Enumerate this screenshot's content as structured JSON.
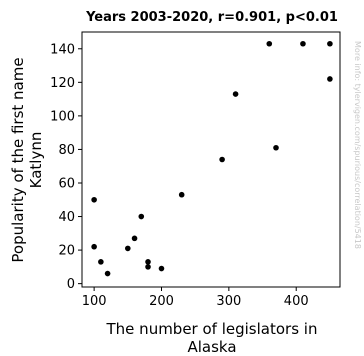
{
  "chart_data": {
    "type": "scatter",
    "title": "Years 2003-2020, r=0.901, p<0.01",
    "xlabel_lines": [
      "The number of legislators in",
      "Alaska"
    ],
    "ylabel_lines": [
      "Popularity of the first name",
      "Katlynn"
    ],
    "xlim": [
      82,
      465
    ],
    "ylim": [
      -2,
      150
    ],
    "xticks": [
      100,
      200,
      300,
      400
    ],
    "yticks": [
      0,
      20,
      40,
      60,
      80,
      100,
      120,
      140
    ],
    "grid": false,
    "marker_color": "#000000",
    "points": [
      {
        "x": 100,
        "y": 50
      },
      {
        "x": 100,
        "y": 22
      },
      {
        "x": 110,
        "y": 13
      },
      {
        "x": 120,
        "y": 6
      },
      {
        "x": 150,
        "y": 21
      },
      {
        "x": 160,
        "y": 27
      },
      {
        "x": 170,
        "y": 40
      },
      {
        "x": 180,
        "y": 13
      },
      {
        "x": 180,
        "y": 10
      },
      {
        "x": 200,
        "y": 9
      },
      {
        "x": 230,
        "y": 53
      },
      {
        "x": 290,
        "y": 74
      },
      {
        "x": 310,
        "y": 113
      },
      {
        "x": 360,
        "y": 143
      },
      {
        "x": 370,
        "y": 81
      },
      {
        "x": 410,
        "y": 143
      },
      {
        "x": 450,
        "y": 143
      },
      {
        "x": 450,
        "y": 122
      }
    ],
    "watermark": "More info: tylervigen.com/spurious/correlation/5418"
  }
}
